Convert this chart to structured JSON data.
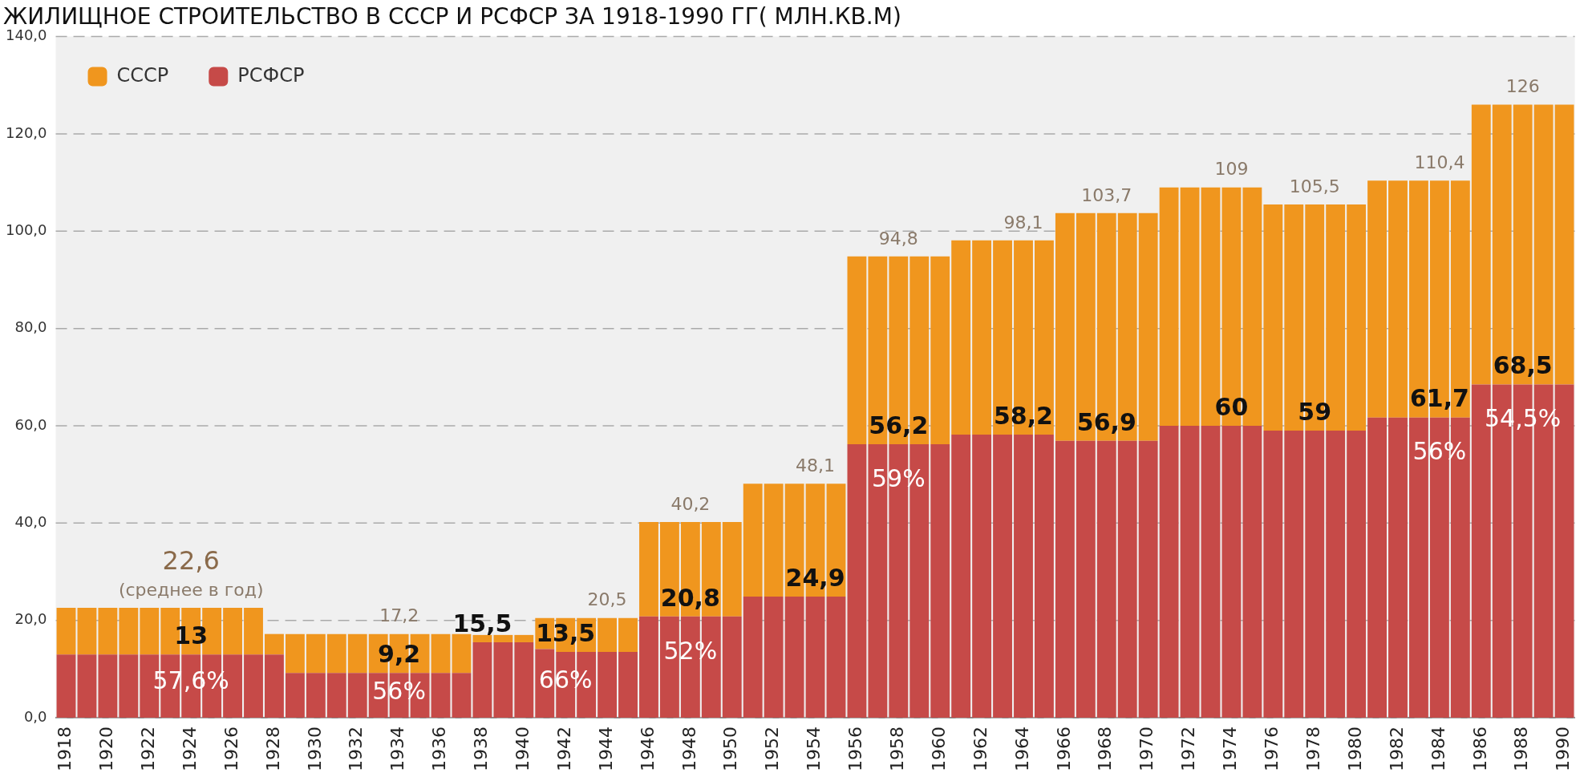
{
  "chart_data": {
    "type": "bar",
    "stacked": true,
    "title": "ЖИЛИЩНОЕ СТРОИТЕЛЬСТВО В СССР И РСФСР ЗА 1918-1990 ГГ( МЛН.КВ.М)",
    "categories": [
      "1918",
      null,
      "1920",
      null,
      "1922",
      null,
      "1924",
      null,
      "1926",
      null,
      "1928",
      null,
      "1930",
      null,
      "1932",
      null,
      "1934",
      null,
      "1936",
      null,
      "1938",
      null,
      "1940",
      null,
      "1942",
      null,
      "1944",
      null,
      "1946",
      null,
      "1948",
      null,
      "1950",
      null,
      "1952",
      null,
      "1954",
      null,
      "1956",
      null,
      "1958",
      null,
      "1960",
      null,
      "1962",
      null,
      "1964",
      null,
      "1966",
      null,
      "1968",
      null,
      "1970",
      null,
      "1972",
      null,
      "1974",
      null,
      "1976",
      null,
      "1978",
      null,
      "1980",
      null,
      "1982",
      null,
      "1984",
      null,
      "1986",
      null,
      "1988",
      null,
      "1990"
    ],
    "series": [
      {
        "name": "РСФСР",
        "color": "#c64a48",
        "values": [
          13,
          13,
          13,
          13,
          13,
          13,
          13,
          13,
          13,
          13,
          13,
          9.2,
          9.2,
          9.2,
          9.2,
          9.2,
          9.2,
          9.2,
          9.2,
          9.2,
          15.5,
          15.5,
          15.5,
          14.1,
          13.5,
          13.5,
          13.5,
          13.5,
          20.8,
          20.8,
          20.8,
          20.8,
          20.8,
          24.9,
          24.9,
          24.9,
          24.9,
          24.9,
          56.2,
          56.2,
          56.2,
          56.2,
          56.2,
          58.2,
          58.2,
          58.2,
          58.2,
          58.2,
          56.9,
          56.9,
          56.9,
          56.9,
          56.9,
          60,
          60,
          60,
          60,
          60,
          59,
          59,
          59,
          59,
          59,
          61.7,
          61.7,
          61.7,
          61.7,
          61.7,
          68.5,
          68.5,
          68.5,
          68.5,
          68.5
        ]
      },
      {
        "name": "СССР",
        "color": "#f0961e",
        "values": [
          9.6,
          9.6,
          9.6,
          9.6,
          9.6,
          9.6,
          9.6,
          9.6,
          9.6,
          9.6,
          4.2,
          8,
          8,
          8,
          8,
          8,
          8,
          8,
          8,
          8,
          1.5,
          1.5,
          1.5,
          6.4,
          7,
          7,
          7,
          7,
          19.4,
          19.4,
          19.4,
          19.4,
          19.4,
          23.2,
          23.2,
          23.2,
          23.2,
          23.2,
          38.6,
          38.6,
          38.6,
          38.6,
          38.6,
          39.9,
          39.9,
          39.9,
          39.9,
          39.9,
          46.8,
          46.8,
          46.8,
          46.8,
          46.8,
          49,
          49,
          49,
          49,
          49,
          46.5,
          46.5,
          46.5,
          46.5,
          46.5,
          48.7,
          48.7,
          48.7,
          48.7,
          48.7,
          57.5,
          57.5,
          57.5,
          57.5,
          57.5
        ]
      }
    ],
    "ylim": [
      0,
      140
    ],
    "yticks": [
      {
        "value": 0,
        "label": "0,0"
      },
      {
        "value": 20,
        "label": "20,0"
      },
      {
        "value": 40,
        "label": "40,0"
      },
      {
        "value": 60,
        "label": "60,0"
      },
      {
        "value": 80,
        "label": "80,0"
      },
      {
        "value": 100,
        "label": "100,0"
      },
      {
        "value": 120,
        "label": "120,0"
      },
      {
        "value": 140,
        "label": "140,0"
      }
    ],
    "grid": "y",
    "legend": "top left",
    "annotations": [
      {
        "text": "(среднее в год)",
        "x": "1924",
        "y": 22.6
      },
      {
        "text": "22,6",
        "x": "1924",
        "y": 22.6
      },
      {
        "text": "13",
        "x": "1924",
        "y": 13
      },
      {
        "text": "57,6%",
        "x": "1924",
        "y": 13
      },
      {
        "text": "17,2",
        "x": "1934",
        "y": 17.2
      },
      {
        "text": "9,2",
        "x": "1934",
        "y": 9.2
      },
      {
        "text": "56%",
        "x": "1934",
        "y": 9.2
      },
      {
        "text": "15,5",
        "x": "1938",
        "y": 15.5
      },
      {
        "text": "20,5",
        "x": "1944",
        "y": 20.5
      },
      {
        "text": "13,5",
        "x": "1942",
        "y": 13.5
      },
      {
        "text": "66%",
        "x": "1942",
        "y": 13.5
      },
      {
        "text": "40,2",
        "x": "1948",
        "y": 40.2
      },
      {
        "text": "20,8",
        "x": "1948",
        "y": 20.8
      },
      {
        "text": "52%",
        "x": "1948",
        "y": 20.8
      },
      {
        "text": "48,1",
        "x": "1954",
        "y": 48.1
      },
      {
        "text": "24,9",
        "x": "1954",
        "y": 24.9
      },
      {
        "text": "94,8",
        "x": "1958",
        "y": 94.8
      },
      {
        "text": "56,2",
        "x": "1958",
        "y": 56.2
      },
      {
        "text": "59%",
        "x": "1958",
        "y": 56.2
      },
      {
        "text": "98,1",
        "x": "1964",
        "y": 98.1
      },
      {
        "text": "58,2",
        "x": "1964",
        "y": 58.2
      },
      {
        "text": "103,7",
        "x": "1968",
        "y": 103.7
      },
      {
        "text": "56,9",
        "x": "1968",
        "y": 56.9
      },
      {
        "text": "109",
        "x": "1974",
        "y": 109
      },
      {
        "text": "60",
        "x": "1974",
        "y": 60
      },
      {
        "text": "105,5",
        "x": "1978",
        "y": 105.5
      },
      {
        "text": "59",
        "x": "1978",
        "y": 59
      },
      {
        "text": "110,4",
        "x": "1984",
        "y": 110.4
      },
      {
        "text": "61,7",
        "x": "1984",
        "y": 61.7
      },
      {
        "text": "56%",
        "x": "1984",
        "y": 61.7
      },
      {
        "text": "126",
        "x": "1988",
        "y": 126
      },
      {
        "text": "68,5",
        "x": "1988",
        "y": 68.5
      },
      {
        "text": "54,5%",
        "x": "1988",
        "y": 68.5
      }
    ]
  }
}
